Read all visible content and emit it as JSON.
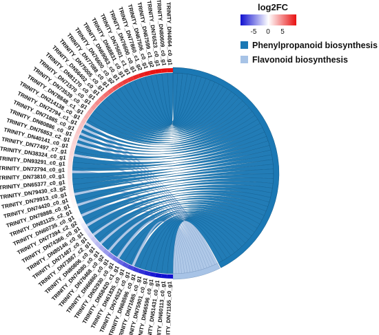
{
  "chart_data": {
    "type": "chord",
    "color_legend": {
      "title": "log2FC",
      "ticks": [
        "-5",
        "0",
        "5"
      ],
      "scale_min": -7,
      "scale_max": 7,
      "colors": {
        "low": "#1010d0",
        "mid": "#ffffff",
        "high": "#e81010"
      }
    },
    "pathways": [
      {
        "name": "Phenylpropanoid biosynthesis",
        "color": "#1b78b4"
      },
      {
        "name": "Flavonoid biosynthesis",
        "color": "#a7c3e6"
      }
    ],
    "genes": [
      {
        "id": "TRINITY_DN4064_c0_g1",
        "log2fc": 7.5,
        "pathways": [
          0
        ]
      },
      {
        "id": "TRINITY_DN80609_c0_g1",
        "log2fc": 7.3,
        "pathways": [
          0
        ]
      },
      {
        "id": "TRINITY_DN76523_c0_g1",
        "log2fc": 7.1,
        "pathways": [
          0
        ]
      },
      {
        "id": "TRINITY_DN67599_c1_g2",
        "log2fc": 6.9,
        "pathways": [
          0
        ]
      },
      {
        "id": "TRINITY_DN67506_c0_g1",
        "log2fc": 6.7,
        "pathways": [
          0
        ]
      },
      {
        "id": "TRINITY_DN77860_c1_g2",
        "log2fc": 6.5,
        "pathways": [
          0
        ]
      },
      {
        "id": "TRINITY_DN76600_c0_g1",
        "log2fc": 6.3,
        "pathways": [
          0
        ]
      },
      {
        "id": "TRINITY_DN75601_c1_g1",
        "log2fc": 6.0,
        "pathways": [
          0
        ]
      },
      {
        "id": "TRINITY_DN68831_c0_g1",
        "log2fc": 5.7,
        "pathways": [
          0
        ]
      },
      {
        "id": "TRINITY_DN69063_c0_g1",
        "log2fc": 5.4,
        "pathways": [
          0
        ]
      },
      {
        "id": "TRINITY_DN76600_c0_g2",
        "log2fc": 5.0,
        "pathways": [
          0
        ]
      },
      {
        "id": "TRINITY_DN77088_c0_g1",
        "log2fc": 4.6,
        "pathways": [
          0
        ]
      },
      {
        "id": "TRINITY_DN75005_c0_g1",
        "log2fc": 4.2,
        "pathways": [
          0
        ]
      },
      {
        "id": "TRINITY_DN56402_c0_g1",
        "log2fc": 3.8,
        "pathways": [
          0
        ]
      },
      {
        "id": "TRINITY_DN81170_c0_g1",
        "log2fc": 3.4,
        "pathways": [
          0
        ]
      },
      {
        "id": "TRINITY_DN71570_c0_g1",
        "log2fc": 3.0,
        "pathways": [
          0
        ]
      },
      {
        "id": "TRINITY_DN73539_c0_g1",
        "log2fc": 2.6,
        "pathways": [
          0
        ]
      },
      {
        "id": "TRINITY_DN78848_c1_g1",
        "log2fc": 2.3,
        "pathways": [
          0
        ]
      },
      {
        "id": "TRINITY_DN214138_c0_g1",
        "log2fc": 2.0,
        "pathways": [
          0,
          1
        ]
      },
      {
        "id": "TRINITY_DN72794_c1_g1",
        "log2fc": 1.8,
        "pathways": [
          0,
          1
        ]
      },
      {
        "id": "TRINITY_DN71885_c0_g1",
        "log2fc": 1.6,
        "pathways": [
          0,
          1
        ]
      },
      {
        "id": "TRINITY_DN80886_c0_g1",
        "log2fc": 1.4,
        "pathways": [
          0,
          1
        ]
      },
      {
        "id": "TRINITY_DN76853_c2_g1",
        "log2fc": 1.3,
        "pathways": [
          0,
          1
        ]
      },
      {
        "id": "TRINITY_DN40141_c0_g1",
        "log2fc": 1.2,
        "pathways": [
          0
        ]
      },
      {
        "id": "TRINITY_DN77497_c7_g1",
        "log2fc": 1.1,
        "pathways": [
          0,
          1
        ]
      },
      {
        "id": "TRINITY_DN38324_c0_g1",
        "log2fc": 1.0,
        "pathways": [
          0
        ]
      },
      {
        "id": "TRINITY_DN93291_c0_g1",
        "log2fc": 0.9,
        "pathways": [
          0
        ]
      },
      {
        "id": "TRINITY_DN72794_c0_g1",
        "log2fc": 0.8,
        "pathways": [
          0,
          1
        ]
      },
      {
        "id": "TRINITY_DN73810_c0_g1",
        "log2fc": 0.7,
        "pathways": [
          0
        ]
      },
      {
        "id": "TRINITY_DN65377_c0_g1",
        "log2fc": 0.6,
        "pathways": [
          0
        ]
      },
      {
        "id": "TRINITY_DN79430_c3_g2",
        "log2fc": 0.5,
        "pathways": [
          0
        ]
      },
      {
        "id": "TRINITY_DN79913_c0_g1",
        "log2fc": 0.4,
        "pathways": [
          0,
          1
        ]
      },
      {
        "id": "TRINITY_DN74420_c0_g1",
        "log2fc": 0.3,
        "pathways": [
          0
        ]
      },
      {
        "id": "TRINITY_DN78888_c0_g1",
        "log2fc": 0.2,
        "pathways": [
          0,
          1
        ]
      },
      {
        "id": "TRINITY_DN81125_c2_g1",
        "log2fc": 0.1,
        "pathways": [
          0
        ]
      },
      {
        "id": "TRINITY_DN60735_c0_g1",
        "log2fc": 0.0,
        "pathways": [
          0,
          1
        ]
      },
      {
        "id": "TRINITY_DN77394_c2_g2",
        "log2fc": -0.3,
        "pathways": [
          0
        ]
      },
      {
        "id": "TRINITY_DN74366_c0_g1",
        "log2fc": -0.6,
        "pathways": [
          0,
          1
        ]
      },
      {
        "id": "TRINITY_DN80146_c0_g1",
        "log2fc": -0.9,
        "pathways": [
          0
        ]
      },
      {
        "id": "TRINITY_DN71487_c0_g1",
        "log2fc": -1.2,
        "pathways": [
          0,
          1
        ]
      },
      {
        "id": "TRINITY_DN73867_c2_g1",
        "log2fc": -1.6,
        "pathways": [
          0
        ]
      },
      {
        "id": "TRINITY_DN80806_c0_g1",
        "log2fc": -2.0,
        "pathways": [
          0,
          1
        ]
      },
      {
        "id": "TRINITY_DN74080_c0_g1",
        "log2fc": -2.5,
        "pathways": [
          0
        ]
      },
      {
        "id": "TRINITY_DN76468_c0_g2",
        "log2fc": -3.0,
        "pathways": [
          0,
          1
        ]
      },
      {
        "id": "TRINITY_DN66860_c0_g1",
        "log2fc": -3.5,
        "pathways": [
          0
        ]
      },
      {
        "id": "TRINITY_DN52930_c0_g1",
        "log2fc": -4.0,
        "pathways": [
          0,
          1
        ]
      },
      {
        "id": "TRINITY_DN58420_c1_g1",
        "log2fc": -4.5,
        "pathways": [
          0
        ]
      },
      {
        "id": "TRINITY_DN61835_c0_g1",
        "log2fc": -5.0,
        "pathways": [
          0
        ]
      },
      {
        "id": "TRINITY_DN74522_c0_g1",
        "log2fc": -5.4,
        "pathways": [
          0,
          1
        ]
      },
      {
        "id": "TRINITY_DN68596_c0_g1",
        "log2fc": -5.8,
        "pathways": [
          0
        ]
      },
      {
        "id": "TRINITY_DN71685_c0_g1",
        "log2fc": -6.1,
        "pathways": [
          0
        ]
      },
      {
        "id": "TRINITY_DN75901_c0_g1",
        "log2fc": -6.4,
        "pathways": [
          0
        ]
      },
      {
        "id": "TRINITY_DN66596_c0_g1",
        "log2fc": -6.7,
        "pathways": [
          0
        ]
      },
      {
        "id": "TRINITY_DN51431_c0_g1",
        "log2fc": -7.0,
        "pathways": [
          0
        ]
      },
      {
        "id": "TRINITY_DN60113_c0_g1",
        "log2fc": -7.3,
        "pathways": [
          0
        ]
      },
      {
        "id": "TRINITY_DN71165_c0_g1",
        "log2fc": -7.6,
        "pathways": [
          0
        ]
      }
    ]
  }
}
